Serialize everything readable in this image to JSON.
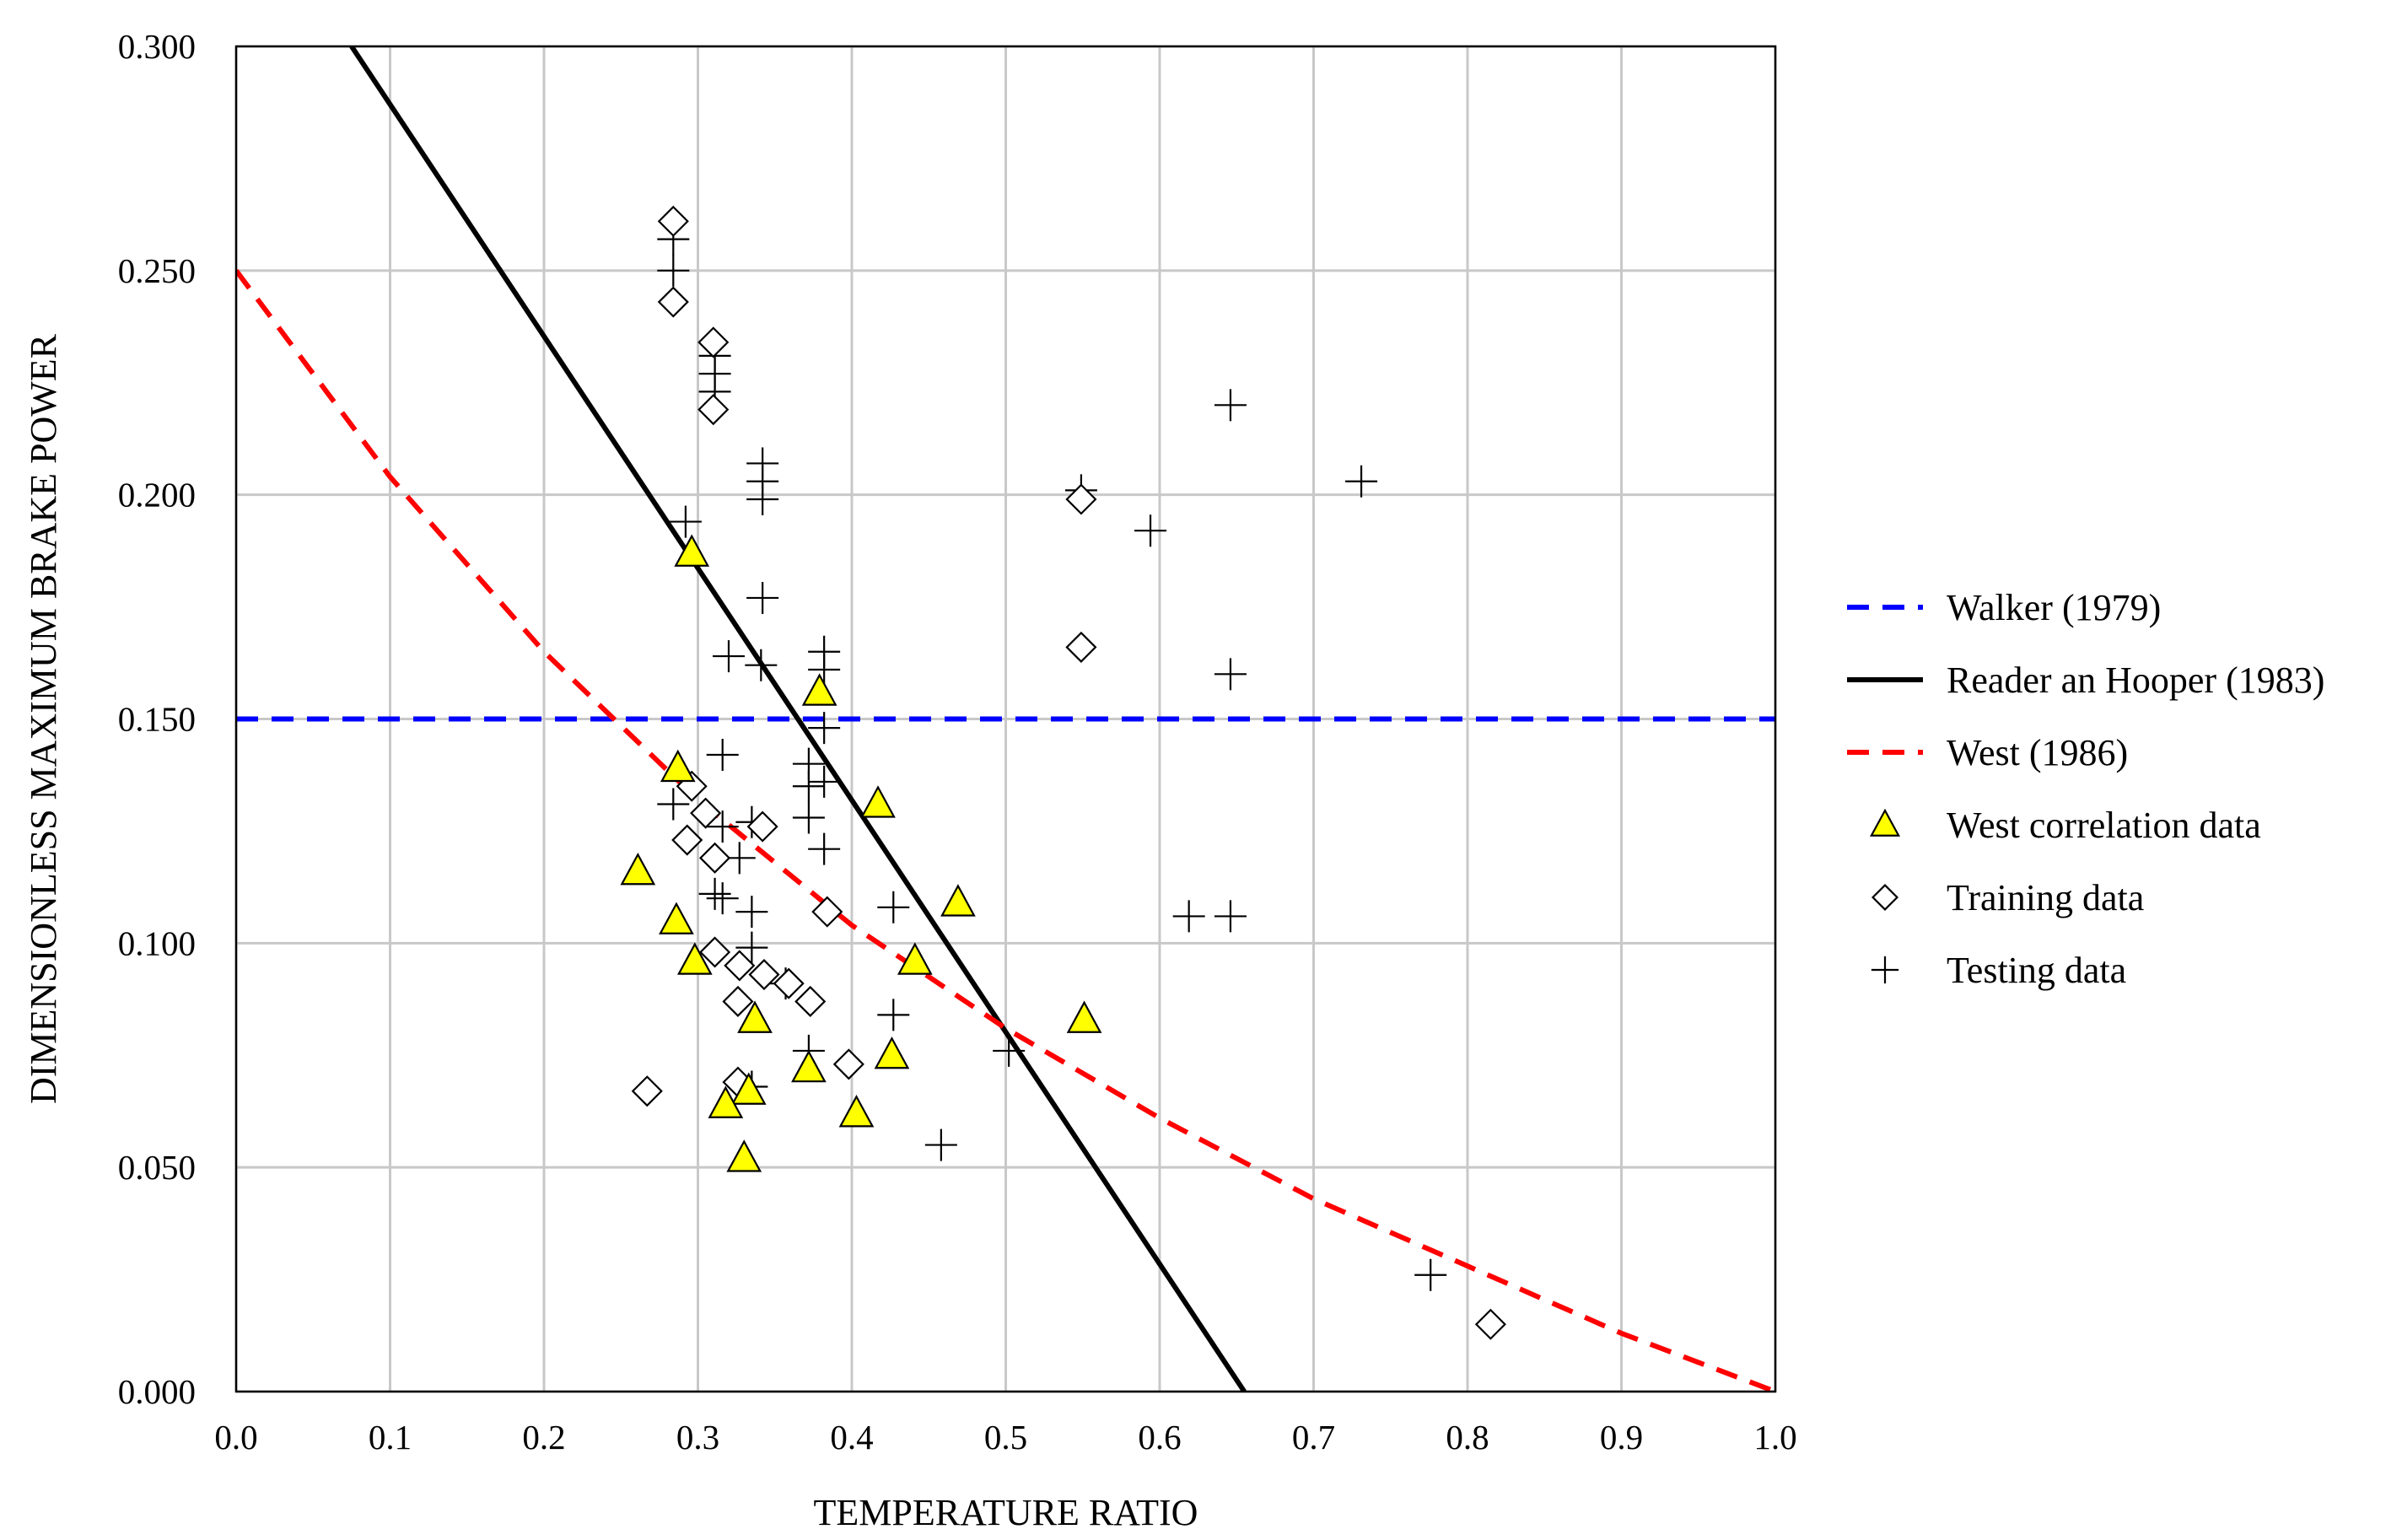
{
  "chart_data": {
    "type": "scatter",
    "xlabel": "TEMPERATURE RATIO",
    "ylabel": "DIMENSIONLESS MAXIMUM BRAKE POWER",
    "xlim": [
      0.0,
      1.0
    ],
    "ylim": [
      0.0,
      0.3
    ],
    "grid": true,
    "legend_position": "right",
    "x_ticks": [
      "0.0",
      "0.1",
      "0.2",
      "0.3",
      "0.4",
      "0.5",
      "0.6",
      "0.7",
      "0.8",
      "0.9",
      "1.0"
    ],
    "y_ticks": [
      "0.000",
      "0.050",
      "0.100",
      "0.150",
      "0.200",
      "0.250",
      "0.300"
    ],
    "series": [
      {
        "name": "Walker (1979)",
        "kind": "line",
        "color": "#0000ff",
        "dash": true,
        "x": [
          0.0,
          1.0
        ],
        "y": [
          0.15,
          0.15
        ]
      },
      {
        "name": "Reader an Hooper (1983)",
        "kind": "line",
        "color": "#000000",
        "dash": false,
        "x": [
          0.075,
          0.655
        ],
        "y": [
          0.3,
          0.0
        ]
      },
      {
        "name": "West (1986)",
        "kind": "line",
        "color": "#ff0000",
        "dash": true,
        "x": [
          0.0,
          0.1,
          0.2,
          0.3,
          0.4,
          0.5,
          0.6,
          0.7,
          0.8,
          0.9,
          1.0
        ],
        "y": [
          0.25,
          0.204,
          0.165,
          0.132,
          0.104,
          0.081,
          0.061,
          0.043,
          0.028,
          0.013,
          0.0
        ]
      },
      {
        "name": "West correlation data",
        "kind": "marker",
        "marker": "triangle",
        "color": "#ffff00",
        "points": [
          [
            0.296,
            0.187
          ],
          [
            0.379,
            0.156
          ],
          [
            0.287,
            0.139
          ],
          [
            0.417,
            0.131
          ],
          [
            0.261,
            0.116
          ],
          [
            0.469,
            0.109
          ],
          [
            0.286,
            0.105
          ],
          [
            0.298,
            0.096
          ],
          [
            0.441,
            0.096
          ],
          [
            0.337,
            0.083
          ],
          [
            0.551,
            0.083
          ],
          [
            0.426,
            0.075
          ],
          [
            0.372,
            0.072
          ],
          [
            0.333,
            0.067
          ],
          [
            0.318,
            0.064
          ],
          [
            0.403,
            0.062
          ],
          [
            0.33,
            0.052
          ]
        ]
      },
      {
        "name": "Training data",
        "kind": "marker",
        "marker": "diamond",
        "color": "#ffffff",
        "points": [
          [
            0.284,
            0.261
          ],
          [
            0.284,
            0.243
          ],
          [
            0.31,
            0.234
          ],
          [
            0.31,
            0.219
          ],
          [
            0.549,
            0.199
          ],
          [
            0.549,
            0.166
          ],
          [
            0.296,
            0.135
          ],
          [
            0.305,
            0.129
          ],
          [
            0.342,
            0.126
          ],
          [
            0.293,
            0.123
          ],
          [
            0.311,
            0.119
          ],
          [
            0.384,
            0.107
          ],
          [
            0.311,
            0.098
          ],
          [
            0.327,
            0.095
          ],
          [
            0.343,
            0.093
          ],
          [
            0.359,
            0.091
          ],
          [
            0.326,
            0.087
          ],
          [
            0.373,
            0.087
          ],
          [
            0.398,
            0.073
          ],
          [
            0.326,
            0.069
          ],
          [
            0.267,
            0.067
          ],
          [
            0.815,
            0.015
          ]
        ]
      },
      {
        "name": "Testing data",
        "kind": "marker",
        "marker": "plus",
        "color": "#000000",
        "points": [
          [
            0.284,
            0.257
          ],
          [
            0.284,
            0.25
          ],
          [
            0.311,
            0.231
          ],
          [
            0.311,
            0.227
          ],
          [
            0.311,
            0.223
          ],
          [
            0.342,
            0.207
          ],
          [
            0.342,
            0.203
          ],
          [
            0.342,
            0.199
          ],
          [
            0.646,
            0.22
          ],
          [
            0.731,
            0.203
          ],
          [
            0.549,
            0.201
          ],
          [
            0.594,
            0.192
          ],
          [
            0.292,
            0.194
          ],
          [
            0.342,
            0.177
          ],
          [
            0.32,
            0.164
          ],
          [
            0.341,
            0.162
          ],
          [
            0.382,
            0.165
          ],
          [
            0.382,
            0.161
          ],
          [
            0.646,
            0.16
          ],
          [
            0.382,
            0.148
          ],
          [
            0.372,
            0.14
          ],
          [
            0.372,
            0.135
          ],
          [
            0.382,
            0.136
          ],
          [
            0.372,
            0.128
          ],
          [
            0.316,
            0.142
          ],
          [
            0.284,
            0.131
          ],
          [
            0.335,
            0.127
          ],
          [
            0.316,
            0.126
          ],
          [
            0.382,
            0.121
          ],
          [
            0.327,
            0.119
          ],
          [
            0.311,
            0.111
          ],
          [
            0.316,
            0.11
          ],
          [
            0.335,
            0.107
          ],
          [
            0.427,
            0.108
          ],
          [
            0.619,
            0.106
          ],
          [
            0.646,
            0.106
          ],
          [
            0.335,
            0.099
          ],
          [
            0.357,
            0.091
          ],
          [
            0.427,
            0.084
          ],
          [
            0.372,
            0.076
          ],
          [
            0.502,
            0.076
          ],
          [
            0.335,
            0.068
          ],
          [
            0.458,
            0.055
          ],
          [
            0.776,
            0.026
          ]
        ]
      }
    ]
  }
}
